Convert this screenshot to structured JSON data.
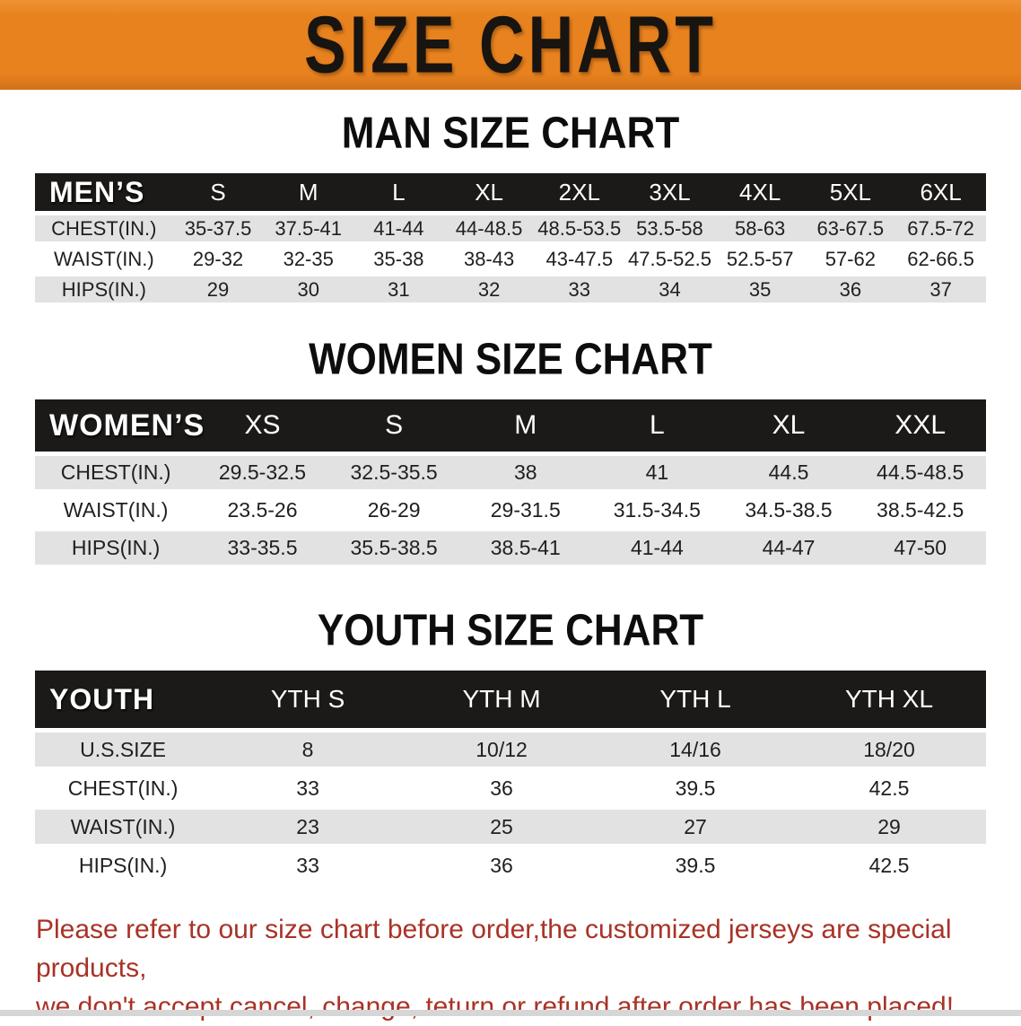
{
  "banner": {
    "title": "SIZE CHART"
  },
  "men": {
    "heading": "MAN SIZE CHART",
    "table": {
      "header_label": "MEN’S",
      "columns": [
        "S",
        "M",
        "L",
        "XL",
        "2XL",
        "3XL",
        "4XL",
        "5XL",
        "6XL"
      ],
      "rows": [
        {
          "label": "CHEST(IN.)",
          "values": [
            "35-37.5",
            "37.5-41",
            "41-44",
            "44-48.5",
            "48.5-53.5",
            "53.5-58",
            "58-63",
            "63-67.5",
            "67.5-72"
          ]
        },
        {
          "label": "WAIST(IN.)",
          "values": [
            "29-32",
            "32-35",
            "35-38",
            "38-43",
            "43-47.5",
            "47.5-52.5",
            "52.5-57",
            "57-62",
            "62-66.5"
          ]
        },
        {
          "label": "HIPS(IN.)",
          "values": [
            "29",
            "30",
            "31",
            "32",
            "33",
            "34",
            "35",
            "36",
            "37"
          ]
        }
      ]
    }
  },
  "women": {
    "heading": "WOMEN SIZE CHART",
    "table": {
      "header_label": "WOMEN’S",
      "columns": [
        "XS",
        "S",
        "M",
        "L",
        "XL",
        "XXL"
      ],
      "rows": [
        {
          "label": "CHEST(IN.)",
          "values": [
            "29.5-32.5",
            "32.5-35.5",
            "38",
            "41",
            "44.5",
            "44.5-48.5"
          ]
        },
        {
          "label": "WAIST(IN.)",
          "values": [
            "23.5-26",
            "26-29",
            "29-31.5",
            "31.5-34.5",
            "34.5-38.5",
            "38.5-42.5"
          ]
        },
        {
          "label": "HIPS(IN.)",
          "values": [
            "33-35.5",
            "35.5-38.5",
            "38.5-41",
            "41-44",
            "44-47",
            "47-50"
          ]
        }
      ]
    }
  },
  "youth": {
    "heading": "YOUTH SIZE CHART",
    "table": {
      "header_label": "YOUTH",
      "columns": [
        "YTH S",
        "YTH M",
        "YTH L",
        "YTH XL"
      ],
      "rows": [
        {
          "label": "U.S.SIZE",
          "values": [
            "8",
            "10/12",
            "14/16",
            "18/20"
          ]
        },
        {
          "label": "CHEST(IN.)",
          "values": [
            "33",
            "36",
            "39.5",
            "42.5"
          ]
        },
        {
          "label": "WAIST(IN.)",
          "values": [
            "23",
            "25",
            "27",
            "29"
          ]
        },
        {
          "label": "HIPS(IN.)",
          "values": [
            "33",
            "36",
            "39.5",
            "42.5"
          ]
        }
      ]
    }
  },
  "disclaimer": {
    "line1": "Please refer to our size chart before order,the customized jerseys are special products,",
    "line2": "we don't accept cancel, change, teturn or refund after order has been placed!"
  },
  "colors": {
    "banner_orange": "#e8821e",
    "banner_orange_light": "#ef9233",
    "banner_orange_dark": "#d2711a",
    "header_black": "#1b1a18",
    "row_gray": "#e2e2e2",
    "disclaimer_red": "#a93226"
  }
}
